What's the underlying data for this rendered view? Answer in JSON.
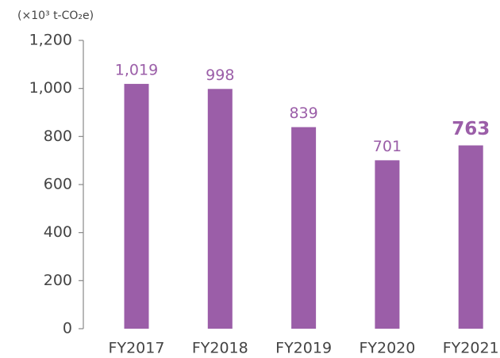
{
  "chart_data": {
    "type": "bar",
    "y_axis_label": "(×10³ t-CO₂e)",
    "categories": [
      "FY2017",
      "FY2018",
      "FY2019",
      "FY2020",
      "FY2021"
    ],
    "values": [
      1019,
      998,
      839,
      701,
      763
    ],
    "value_labels": [
      "1,019",
      "998",
      "839",
      "701",
      "763"
    ],
    "color": "#9b5ea8",
    "ylim": [
      0,
      1200
    ],
    "yticks": [
      0,
      200,
      400,
      600,
      800,
      {
        "value": 1000,
        "label": "1,000"
      },
      {
        "value": 1200,
        "label": "1,200"
      }
    ],
    "grid": false
  }
}
